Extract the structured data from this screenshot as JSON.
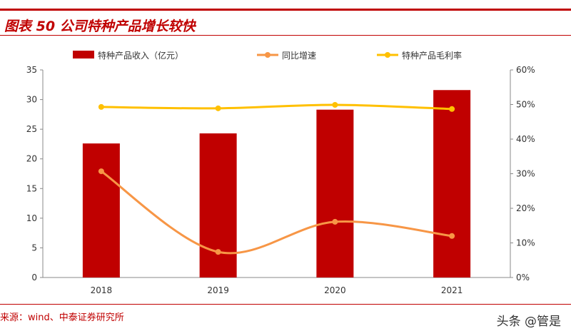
{
  "header": {
    "title": "图表 50 公司特种产品增长较快"
  },
  "footer": {
    "source": "来源：wind、中泰证券研究所",
    "watermark": "头条 @管是"
  },
  "chart_data": {
    "type": "bar+line",
    "categories": [
      "2018",
      "2019",
      "2020",
      "2021"
    ],
    "series": [
      {
        "name": "特种产品收入（亿元）",
        "type": "bar",
        "axis": "left",
        "color": "#c00000",
        "values": [
          22.6,
          24.3,
          28.3,
          31.6
        ]
      },
      {
        "name": "同比增速",
        "type": "line",
        "axis": "right",
        "color": "#f79646",
        "values": [
          30.7,
          7.4,
          16.1,
          12.0
        ]
      },
      {
        "name": "特种产品毛利率",
        "type": "line",
        "axis": "right",
        "color": "#ffc000",
        "values": [
          49.3,
          48.9,
          49.9,
          48.7
        ]
      }
    ],
    "left_axis": {
      "ylim": [
        0,
        35
      ],
      "ticks": [
        "0",
        "5",
        "10",
        "15",
        "20",
        "25",
        "30",
        "35"
      ]
    },
    "right_axis": {
      "ylim": [
        0,
        60
      ],
      "ticks": [
        "0%",
        "10%",
        "20%",
        "30%",
        "40%",
        "50%",
        "60%"
      ]
    },
    "legend": "top",
    "grid": false
  }
}
